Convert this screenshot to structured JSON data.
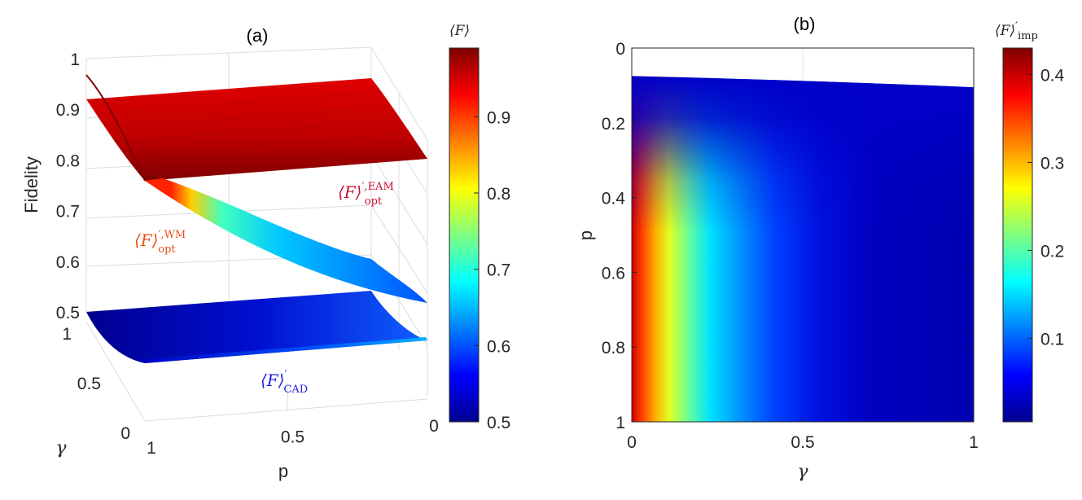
{
  "chart_data": [
    {
      "id": "a",
      "type": "surface",
      "title": "(a)",
      "xlabel": "p",
      "ylabel": "γ",
      "zlabel": "Fidelity",
      "x_ticks": [
        "1",
        "0.5",
        "0"
      ],
      "y_ticks": [
        "0",
        "0.5",
        "1"
      ],
      "z_ticks": [
        "0.5",
        "0.6",
        "0.7",
        "0.8",
        "0.9",
        "1"
      ],
      "zlim": [
        0.5,
        1
      ],
      "colorbar": {
        "title": "⟨F⟩",
        "ticks": [
          "0.5",
          "0.6",
          "0.7",
          "0.8",
          "0.9"
        ],
        "range": [
          0.5,
          0.99
        ]
      },
      "surfaces": [
        {
          "name_main": "⟨F⟩",
          "name_sub": "opt",
          "name_sup": "′,EAM",
          "color": "#c8102e",
          "value_range": [
            0.93,
            0.99
          ]
        },
        {
          "name_main": "⟨F⟩",
          "name_sub": "opt",
          "name_sup": "′,WM",
          "color": "#e8501a",
          "value_range": [
            0.56,
            1.0
          ]
        },
        {
          "name_main": "⟨F⟩",
          "name_sub": "CAD",
          "name_sup": "′",
          "color": "#1d1de0",
          "value_range": [
            0.5,
            0.64
          ]
        }
      ]
    },
    {
      "id": "b",
      "type": "heatmap",
      "title": "(b)",
      "xlabel": "γ",
      "ylabel": "p",
      "xlim": [
        0,
        1
      ],
      "ylim": [
        0,
        1
      ],
      "y_reversed": true,
      "x_ticks": [
        "0",
        "0.5",
        "1"
      ],
      "y_ticks": [
        "0",
        "0.2",
        "0.4",
        "0.6",
        "0.8",
        "1"
      ],
      "undefined_boundary": {
        "gamma": [
          0,
          0.5,
          1
        ],
        "p": [
          0.075,
          0.09,
          0.105
        ]
      },
      "colorbar": {
        "title_main": "⟨F⟩",
        "title_sub": "imp",
        "title_sup": "′",
        "ticks": [
          "0.1",
          "0.2",
          "0.3",
          "0.4"
        ],
        "range": [
          0.005,
          0.43
        ]
      }
    }
  ]
}
